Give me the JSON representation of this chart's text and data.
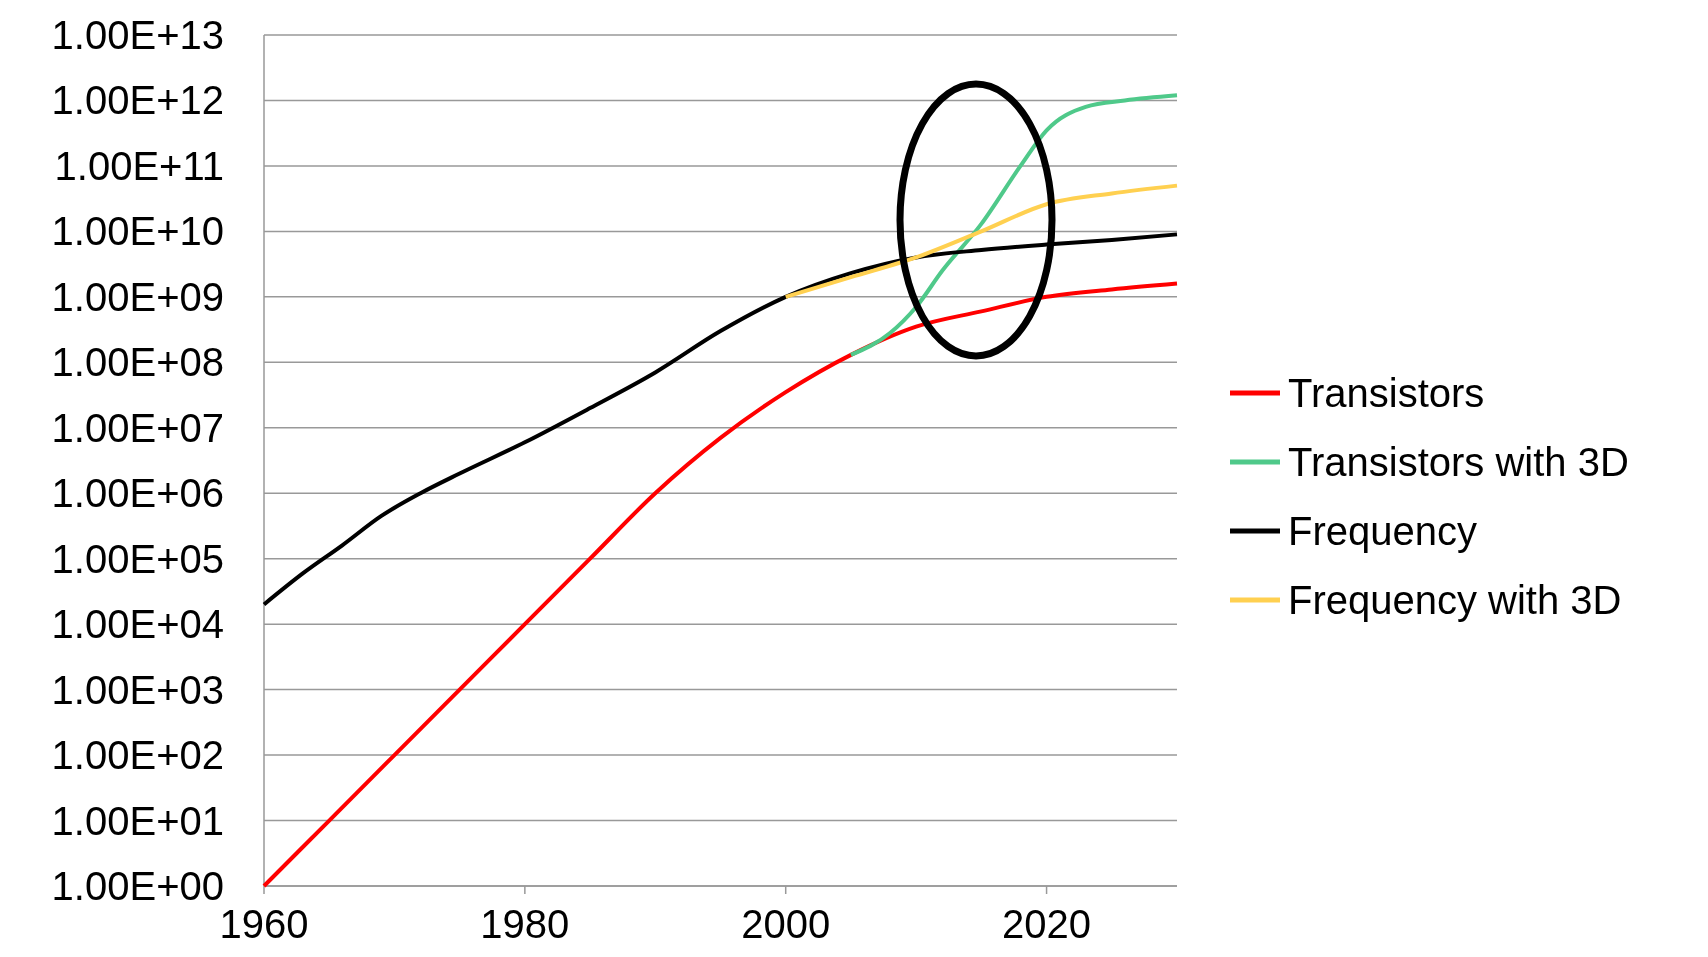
{
  "chart_data": {
    "type": "line",
    "log": "y",
    "grid": "y",
    "legend": "right",
    "xlim": [
      1960,
      2030
    ],
    "xticks": [
      1960,
      1980,
      2000,
      2020
    ],
    "ylim": [
      1,
      10000000000000.0
    ],
    "yticks": [
      {
        "value": 1,
        "label": "1.00E+00"
      },
      {
        "value": 10,
        "label": "1.00E+01"
      },
      {
        "value": 100,
        "label": "1.00E+02"
      },
      {
        "value": 1000,
        "label": "1.00E+03"
      },
      {
        "value": 10000,
        "label": "1.00E+04"
      },
      {
        "value": 100000,
        "label": "1.00E+05"
      },
      {
        "value": 1000000,
        "label": "1.00E+06"
      },
      {
        "value": 10000000,
        "label": "1.00E+07"
      },
      {
        "value": 100000000,
        "label": "1.00E+08"
      },
      {
        "value": 1000000000,
        "label": "1.00E+09"
      },
      {
        "value": 10000000000,
        "label": "1.00E+10"
      },
      {
        "value": 100000000000,
        "label": "1.00E+11"
      },
      {
        "value": 1000000000000,
        "label": "1.00E+12"
      },
      {
        "value": 10000000000000,
        "label": "1.00E+13"
      }
    ],
    "series": [
      {
        "name": "Transistors",
        "color": "#ff0000",
        "x": [
          1960,
          1965,
          1970,
          1975,
          1980,
          1985,
          1990,
          1995,
          2000,
          2005,
          2010,
          2015,
          2020,
          2025,
          2030
        ],
        "values": [
          1,
          10,
          100,
          1000,
          10000,
          100000,
          1000000,
          7000000,
          35000000,
          130000000,
          350000000,
          600000000,
          1000000000,
          1300000000,
          1600000000
        ]
      },
      {
        "name": "Transistors with 3D",
        "color": "#4fc98a",
        "x": [
          2005,
          2008,
          2010,
          2012,
          2015,
          2018,
          2020,
          2023,
          2026,
          2030
        ],
        "values": [
          130000000,
          280000000,
          700000000,
          2500000000,
          13000000000,
          100000000000,
          350000000000,
          800000000000,
          1000000000000,
          1200000000000
        ]
      },
      {
        "name": "Frequency",
        "color": "#000000",
        "x": [
          1960,
          1963,
          1966,
          1969,
          1972,
          1975,
          1980,
          1985,
          1990,
          1995,
          2000,
          2005,
          2010,
          2015,
          2020,
          2025,
          2030
        ],
        "values": [
          20000,
          60000,
          160000,
          450000,
          1000000,
          2000000,
          6000000,
          20000000,
          70000000,
          300000000,
          1000000000,
          2300000000,
          4000000000,
          5200000000,
          6300000000,
          7400000000,
          9000000000
        ]
      },
      {
        "name": "Frequency with 3D",
        "color": "#ffd050",
        "x": [
          2000,
          2005,
          2010,
          2015,
          2020,
          2025,
          2030
        ],
        "values": [
          1000000000,
          2000000000,
          4000000000,
          10000000000,
          26000000000,
          38000000000,
          50000000000
        ]
      }
    ]
  }
}
